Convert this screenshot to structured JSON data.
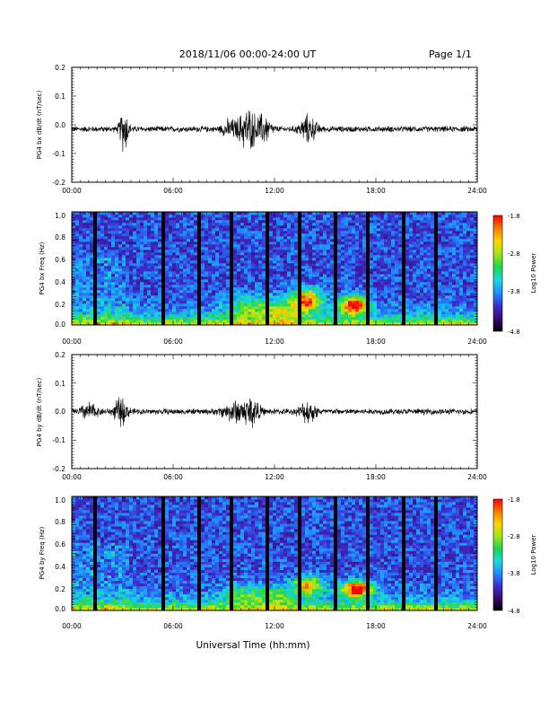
{
  "header": {
    "title": "2018/11/06  00:00-24:00 UT",
    "page": "Page 1/1"
  },
  "footer": {
    "xlabel": "Universal Time (hh:mm)"
  },
  "colors": {
    "trace": "#000000",
    "colorbar": [
      "#000000",
      "#3a0a6e",
      "#3b2fd0",
      "#1f8cff",
      "#19d8e0",
      "#1fd64a",
      "#9ee61a",
      "#ffd400",
      "#ff7a00",
      "#ff0000"
    ]
  },
  "chart_data": [
    {
      "type": "line",
      "ylabel": "PG4 bx dB/dt (nT/sec)",
      "xlim": [
        0,
        24
      ],
      "ylim": [
        -0.2,
        0.2
      ],
      "x_ticks": [
        "00:00",
        "06:00",
        "12:00",
        "18:00",
        "24:00"
      ],
      "y_ticks": [
        "0.2",
        "0.1",
        "0.0",
        "-0.1",
        "-0.2"
      ],
      "baseline": -0.015,
      "noise_amp": 0.012,
      "bursts": [
        {
          "t": 3.1,
          "amp": 0.09,
          "w": 0.25
        },
        {
          "t": 10.4,
          "amp": 0.08,
          "w": 0.6
        },
        {
          "t": 11.4,
          "amp": 0.05,
          "w": 0.4
        },
        {
          "t": 14.0,
          "amp": 0.05,
          "w": 0.5
        },
        {
          "t": 9.3,
          "amp": 0.03,
          "w": 0.4
        }
      ]
    },
    {
      "type": "heatmap",
      "ylabel": "PG4 bx Freq (Hz)",
      "colorbar_label": "Log10 Power",
      "colorbar_ticks": [
        "-1.8",
        "-2.8",
        "-3.8",
        "-4.8"
      ],
      "clim": [
        -4.8,
        -1.8
      ],
      "xlim": [
        0,
        24
      ],
      "ylim": [
        0.0,
        1.0
      ],
      "x_ticks": [
        "00:00",
        "06:00",
        "12:00",
        "18:00",
        "24:00"
      ],
      "y_ticks": [
        "1.0",
        "0.8",
        "0.6",
        "0.4",
        "0.2",
        "0.0"
      ],
      "gaps": [
        1.35,
        3.4,
        5.45,
        7.45,
        9.5,
        11.5,
        13.5,
        15.55,
        17.55,
        19.6,
        21.6
      ],
      "features": [
        {
          "t": 13.9,
          "f": 0.22,
          "dt": 0.9,
          "df": 0.1,
          "p": 1.9
        },
        {
          "t": 16.7,
          "f": 0.18,
          "dt": 0.8,
          "df": 0.08,
          "p": 2.3
        },
        {
          "t": 10.6,
          "f": 0.15,
          "dt": 1.5,
          "df": 0.12,
          "p": 0.8
        },
        {
          "t": 12.5,
          "f": 0.12,
          "dt": 1.0,
          "df": 0.1,
          "p": 0.8
        }
      ]
    },
    {
      "type": "line",
      "ylabel": "PG4 by dB/dt (nT/sec)",
      "xlim": [
        0,
        24
      ],
      "ylim": [
        -0.2,
        0.2
      ],
      "x_ticks": [
        "00:00",
        "06:00",
        "12:00",
        "18:00",
        "24:00"
      ],
      "y_ticks": [
        "0.2",
        "0.1",
        "0.0",
        "-0.1",
        "-0.2"
      ],
      "baseline": 0.0,
      "noise_amp": 0.012,
      "bursts": [
        {
          "t": 1.0,
          "amp": 0.03,
          "w": 0.5
        },
        {
          "t": 2.9,
          "amp": 0.05,
          "w": 0.4
        },
        {
          "t": 9.8,
          "amp": 0.04,
          "w": 0.8
        },
        {
          "t": 10.7,
          "amp": 0.05,
          "w": 0.4
        },
        {
          "t": 14.0,
          "amp": 0.04,
          "w": 0.5
        }
      ]
    },
    {
      "type": "heatmap",
      "ylabel": "PG4 by Freq (Hz)",
      "colorbar_label": "Log10 Power",
      "colorbar_ticks": [
        "-1.8",
        "-2.8",
        "-3.8",
        "-4.8"
      ],
      "clim": [
        -4.8,
        -1.8
      ],
      "xlim": [
        0,
        24
      ],
      "ylim": [
        0.0,
        1.0
      ],
      "x_ticks": [
        "00:00",
        "06:00",
        "12:00",
        "18:00",
        "24:00"
      ],
      "y_ticks": [
        "1.0",
        "0.8",
        "0.6",
        "0.4",
        "0.2",
        "0.0"
      ],
      "gaps": [
        1.35,
        3.4,
        5.45,
        7.45,
        9.5,
        11.5,
        13.5,
        15.55,
        17.55,
        19.6,
        21.6
      ],
      "features": [
        {
          "t": 14.0,
          "f": 0.22,
          "dt": 0.9,
          "df": 0.08,
          "p": 1.6
        },
        {
          "t": 16.9,
          "f": 0.19,
          "dt": 0.9,
          "df": 0.07,
          "p": 2.3
        },
        {
          "t": 10.4,
          "f": 0.14,
          "dt": 1.5,
          "df": 0.1,
          "p": 0.7
        },
        {
          "t": 12.3,
          "f": 0.12,
          "dt": 1.0,
          "df": 0.08,
          "p": 0.6
        }
      ]
    }
  ]
}
